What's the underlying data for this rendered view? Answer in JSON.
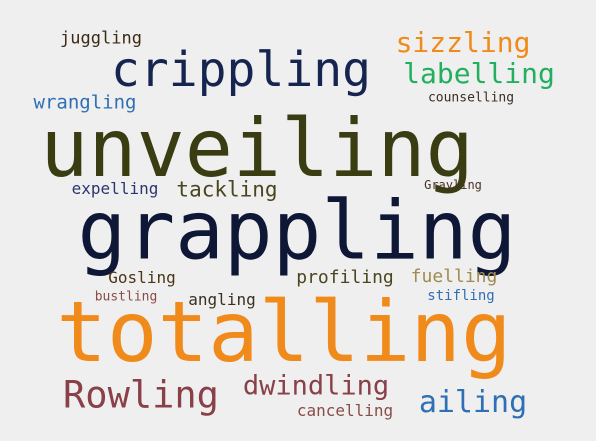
{
  "words": [
    {
      "text": "juggling",
      "color": "#3b2a14"
    },
    {
      "text": "crippling",
      "color": "#152550"
    },
    {
      "text": "sizzling",
      "color": "#f08a1a"
    },
    {
      "text": "labelling",
      "color": "#22b060"
    },
    {
      "text": "wrangling",
      "color": "#2f6fb5"
    },
    {
      "text": "counselling",
      "color": "#3a2f20"
    },
    {
      "text": "unveiling",
      "color": "#3a3c12"
    },
    {
      "text": "expelling",
      "color": "#2a3670"
    },
    {
      "text": "tackling",
      "color": "#4a4520"
    },
    {
      "text": "Grayling",
      "color": "#4a3024"
    },
    {
      "text": "grappling",
      "color": "#0e1836"
    },
    {
      "text": "Gosling",
      "color": "#4a3516"
    },
    {
      "text": "profiling",
      "color": "#4a4520"
    },
    {
      "text": "fuelling",
      "color": "#a08c50"
    },
    {
      "text": "bustling",
      "color": "#8a4c48"
    },
    {
      "text": "angling",
      "color": "#3a2f20"
    },
    {
      "text": "stifling",
      "color": "#2f6fb5"
    },
    {
      "text": "totalling",
      "color": "#f08a1a"
    },
    {
      "text": "Rowling",
      "color": "#8a4048"
    },
    {
      "text": "dwindling",
      "color": "#8a4048"
    },
    {
      "text": "cancelling",
      "color": "#8a4c48"
    },
    {
      "text": "ailing",
      "color": "#2f6fb5"
    }
  ]
}
